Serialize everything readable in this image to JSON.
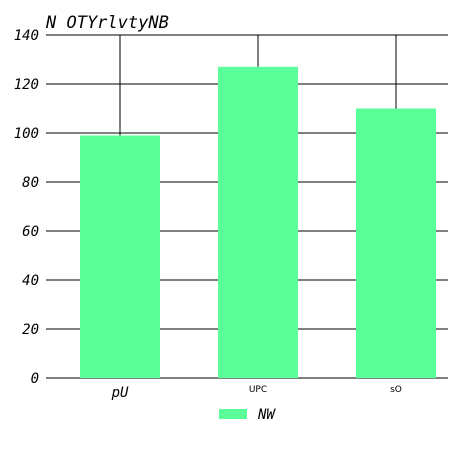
{
  "chart_data": {
    "type": "bar",
    "title": "N OTYrlvtyNB",
    "categories": [
      "pU",
      "UPC",
      "sO"
    ],
    "series": [
      {
        "name": "NW",
        "values": [
          99,
          127,
          110
        ]
      }
    ],
    "y_ticks": [
      0,
      20,
      40,
      60,
      80,
      100,
      120,
      140
    ],
    "ylim": [
      0,
      140
    ],
    "xlabel": "",
    "ylabel": "",
    "grid": true,
    "legend_position": "bottom-center",
    "colors": {
      "bar": "#5AFF9A",
      "grid": "#000000",
      "text": "#000000",
      "background": "#ffffff"
    }
  }
}
